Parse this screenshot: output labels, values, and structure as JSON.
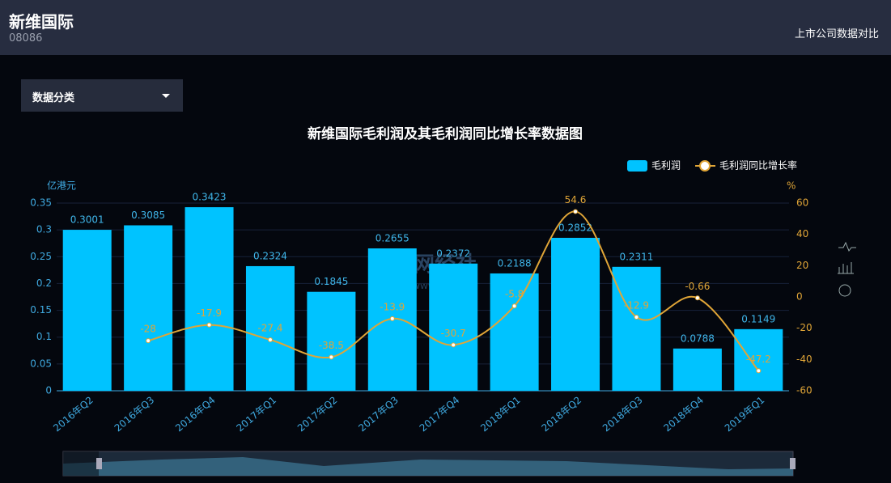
{
  "header": {
    "title": "新维国际",
    "code": "08086",
    "link": "上市公司数据对比"
  },
  "dropdown": {
    "label": "数据分类"
  },
  "watermark": [
    "网经社",
    "WWW.100EC.CN"
  ],
  "chart_data": {
    "type": "bar",
    "title": "新维国际毛利润及其毛利润同比增长率数据图",
    "y_label": "亿港元",
    "y2_label": "%",
    "categories": [
      "2016年Q2",
      "2016年Q3",
      "2016年Q4",
      "2017年Q1",
      "2017年Q2",
      "2017年Q3",
      "2017年Q4",
      "2018年Q1",
      "2018年Q2",
      "2018年Q3",
      "2018年Q4",
      "2019年Q1"
    ],
    "series": [
      {
        "name": "毛利润",
        "type": "bar",
        "color": "#00c3ff",
        "values": [
          0.3001,
          0.3085,
          0.3423,
          0.2324,
          0.1845,
          0.2655,
          0.2372,
          0.2188,
          0.2852,
          0.2311,
          0.0788,
          0.1149
        ]
      },
      {
        "name": "毛利润同比增长率",
        "type": "line",
        "axis": "y2",
        "color": "#e0a537",
        "values": [
          null,
          -28,
          -17.9,
          -27.4,
          -38.5,
          -13.9,
          -30.7,
          -5.8,
          54.6,
          -12.9,
          -0.66,
          -47.2
        ]
      }
    ],
    "ylim": [
      0,
      0.35
    ],
    "yticks": [
      0,
      0.05,
      0.1,
      0.15,
      0.2,
      0.25,
      0.3,
      0.35
    ],
    "y2lim": [
      -60,
      60
    ],
    "y2ticks": [
      -60,
      -40,
      -20,
      0,
      20,
      40,
      60
    ],
    "grid": true,
    "legend": "top-right"
  }
}
